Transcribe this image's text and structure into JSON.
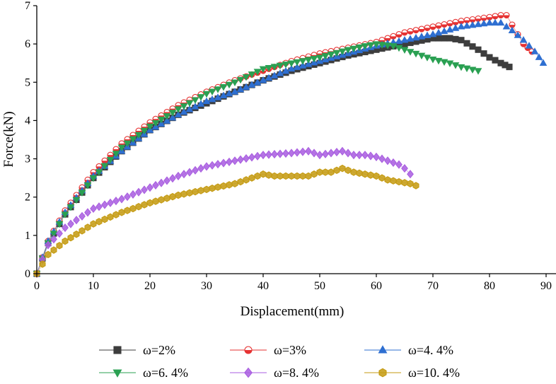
{
  "chart_data": {
    "type": "scatter",
    "title": "",
    "xlabel": "Displacement(mm)",
    "ylabel": "Force(kN)",
    "xlim": [
      0,
      90
    ],
    "ylim": [
      0,
      7
    ],
    "xticks": [
      "0",
      "10",
      "20",
      "30",
      "40",
      "50",
      "60",
      "70",
      "80",
      "90"
    ],
    "yticks": [
      "0",
      "1",
      "2",
      "3",
      "4",
      "5",
      "6",
      "7"
    ],
    "grid": false,
    "legend_position": "bottom",
    "series": [
      {
        "name": "ω=2%",
        "marker": "square",
        "color": "#3d3d3d",
        "x": [
          0,
          2,
          5,
          10,
          15,
          20,
          25,
          30,
          35,
          40,
          45,
          50,
          55,
          60,
          65,
          70,
          73,
          75,
          78,
          80,
          82,
          83.5
        ],
        "y": [
          0,
          0.8,
          1.55,
          2.5,
          3.2,
          3.75,
          4.15,
          4.45,
          4.75,
          5.05,
          5.3,
          5.5,
          5.7,
          5.85,
          6.0,
          6.15,
          6.15,
          6.1,
          5.85,
          5.65,
          5.5,
          5.4
        ]
      },
      {
        "name": "ω=3%",
        "marker": "half-circle",
        "color": "#e63232",
        "x": [
          0,
          2,
          5,
          10,
          15,
          20,
          25,
          30,
          35,
          40,
          45,
          50,
          55,
          60,
          65,
          70,
          75,
          80,
          82,
          83,
          84,
          86,
          87.5
        ],
        "y": [
          0,
          0.85,
          1.65,
          2.65,
          3.4,
          3.95,
          4.4,
          4.75,
          5.05,
          5.3,
          5.55,
          5.75,
          5.9,
          6.05,
          6.3,
          6.45,
          6.6,
          6.7,
          6.75,
          6.75,
          6.5,
          6.0,
          5.8
        ]
      },
      {
        "name": "ω=4. 4%",
        "marker": "triangle-up",
        "color": "#2e6fd1",
        "x": [
          0,
          2,
          5,
          10,
          15,
          20,
          25,
          30,
          35,
          40,
          45,
          50,
          55,
          60,
          65,
          70,
          75,
          80,
          82,
          84,
          86,
          88,
          89.5
        ],
        "y": [
          0,
          0.85,
          1.6,
          2.55,
          3.2,
          3.75,
          4.15,
          4.5,
          4.75,
          5.05,
          5.35,
          5.55,
          5.75,
          5.95,
          6.1,
          6.25,
          6.45,
          6.55,
          6.55,
          6.35,
          6.1,
          5.8,
          5.5
        ]
      },
      {
        "name": "ω=6. 4%",
        "marker": "triangle-down",
        "color": "#2aa052",
        "x": [
          0,
          2,
          5,
          10,
          15,
          20,
          25,
          30,
          35,
          40,
          45,
          50,
          55,
          58,
          60,
          63,
          65,
          68,
          70,
          73,
          75,
          78
        ],
        "y": [
          0,
          0.8,
          1.55,
          2.5,
          3.3,
          3.85,
          4.3,
          4.7,
          5.0,
          5.35,
          5.5,
          5.65,
          5.85,
          5.95,
          6.0,
          5.95,
          5.85,
          5.7,
          5.6,
          5.5,
          5.4,
          5.3
        ]
      },
      {
        "name": "ω=8. 4%",
        "marker": "diamond",
        "color": "#a95ee0",
        "x": [
          0,
          2,
          5,
          10,
          15,
          20,
          25,
          30,
          35,
          40,
          45,
          48,
          50,
          52,
          54,
          56,
          58,
          60,
          62,
          64,
          65,
          66
        ],
        "y": [
          0,
          0.75,
          1.2,
          1.7,
          1.95,
          2.25,
          2.55,
          2.8,
          2.95,
          3.1,
          3.15,
          3.2,
          3.1,
          3.15,
          3.2,
          3.1,
          3.1,
          3.05,
          2.95,
          2.85,
          2.75,
          2.6
        ]
      },
      {
        "name": "ω=10. 4%",
        "marker": "hexagon",
        "color": "#c49a10",
        "x": [
          0,
          2,
          5,
          10,
          15,
          20,
          25,
          30,
          35,
          38,
          40,
          42,
          45,
          48,
          50,
          52,
          54,
          56,
          58,
          60,
          62,
          64,
          66,
          67
        ],
        "y": [
          0,
          0.5,
          0.85,
          1.3,
          1.6,
          1.85,
          2.05,
          2.2,
          2.35,
          2.5,
          2.6,
          2.55,
          2.55,
          2.55,
          2.65,
          2.65,
          2.75,
          2.65,
          2.6,
          2.55,
          2.45,
          2.4,
          2.35,
          2.3
        ]
      }
    ]
  }
}
